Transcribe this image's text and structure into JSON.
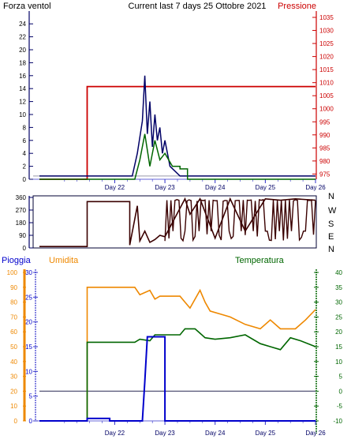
{
  "header": {
    "left": "Forza ventol",
    "center": "Current last 7 days 25 Ottobre 2021",
    "right": "Pressione"
  },
  "x_ticks": [
    "Day 22",
    "Day 23",
    "Day 24",
    "Day 25",
    "Day 26"
  ],
  "colors": {
    "wind": "#000066",
    "wind_green": "#006600",
    "pressure": "#cc0000",
    "direction": "#3a0000",
    "rain": "#0000cc",
    "humidity": "#ee8800",
    "temperature": "#006600",
    "axis_blue": "#3333cc",
    "grid": "#9999aa"
  },
  "chart_data": [
    {
      "type": "line",
      "title": "Current last 7 days 25 Ottobre 2021",
      "xlabel": "",
      "ylabel_left": "Forza ventol",
      "ylabel_right": "Pressione",
      "x": [
        20.5,
        21.5,
        22.4,
        22.6,
        22.7,
        22.8,
        22.9,
        23.0,
        23.3,
        23.45,
        24.0,
        25.0,
        26.0
      ],
      "ylim_left": [
        0,
        25
      ],
      "yticks_left": [
        0,
        2,
        4,
        6,
        8,
        10,
        12,
        14,
        16,
        18,
        20,
        22,
        24
      ],
      "ylim_right": [
        973,
        1035
      ],
      "yticks_right": [
        975,
        980,
        985,
        990,
        995,
        1000,
        1005,
        1010,
        1015,
        1020,
        1025,
        1030,
        1035
      ],
      "series": [
        {
          "name": "Pressione",
          "axis": "right",
          "x": [
            20.5,
            21.45,
            21.45,
            26.0
          ],
          "values": [
            973,
            973,
            1008.5,
            1008.5
          ]
        },
        {
          "axis": "left",
          "x": [
            20.5,
            22.35,
            22.45,
            22.55,
            22.6,
            22.65,
            22.7,
            22.75,
            22.8,
            22.85,
            22.9,
            22.95,
            23.0,
            23.1,
            23.3,
            26.0
          ],
          "values": [
            0.5,
            0.5,
            4,
            9,
            16,
            7,
            12,
            5,
            10,
            6,
            8,
            4,
            6,
            2,
            0.5,
            0.5
          ]
        },
        {
          "axis": "left",
          "x": [
            20.5,
            22.4,
            22.5,
            22.6,
            22.7,
            22.8,
            22.9,
            23.0,
            23.15,
            23.3,
            23.3,
            23.45,
            23.45,
            26.0
          ],
          "values": [
            0,
            0,
            3,
            7,
            2,
            6,
            3,
            4,
            2,
            2,
            1.6,
            1.6,
            0,
            0
          ]
        }
      ]
    },
    {
      "type": "line",
      "ylabel_right_ticks": [
        "N",
        "W",
        "S",
        "E",
        "N"
      ],
      "ylim": [
        0,
        360
      ],
      "yticks": [
        0,
        45,
        90,
        135,
        180,
        225,
        270,
        315,
        360
      ],
      "series": [
        {
          "x": [
            20.5,
            21.45,
            21.45,
            22.3,
            22.3,
            22.45,
            22.5,
            22.6,
            22.7,
            22.8,
            22.9,
            23.0,
            23.4,
            23.5,
            23.7,
            24.0,
            24.3,
            24.6,
            25.0,
            25.3,
            25.6,
            26.0
          ],
          "values": [
            10,
            10,
            330,
            330,
            20,
            300,
            50,
            120,
            40,
            60,
            90,
            80,
            350,
            240,
            350,
            70,
            350,
            120,
            350,
            340,
            350,
            340
          ]
        }
      ]
    },
    {
      "type": "line",
      "ylabel_left_1": "Pioggia",
      "ylabel_left_2": "Umidita",
      "ylabel_right": "Temperatura",
      "ylim_humidity": [
        0,
        100
      ],
      "yticks_humidity": [
        0,
        10,
        20,
        30,
        40,
        50,
        60,
        70,
        80,
        90,
        100
      ],
      "ylim_rain": [
        0,
        30
      ],
      "yticks_rain": [
        0,
        5,
        10,
        15,
        20,
        25,
        30
      ],
      "ylim_temp": [
        -10,
        40
      ],
      "yticks_temp": [
        -10,
        -5,
        0,
        5,
        10,
        15,
        20,
        25,
        30,
        35,
        40
      ],
      "series": [
        {
          "name": "Umidita",
          "axis": "humidity",
          "x": [
            20.5,
            21.45,
            21.45,
            22.4,
            22.5,
            22.7,
            22.8,
            22.9,
            23.3,
            23.4,
            23.5,
            23.7,
            23.8,
            23.9,
            24.1,
            24.3,
            24.6,
            24.9,
            25.1,
            25.3,
            25.6,
            25.8,
            26.0
          ],
          "values": [
            0,
            0,
            90,
            90,
            85,
            88,
            82,
            84,
            84,
            80,
            76,
            88,
            80,
            74,
            72,
            70,
            65,
            62,
            68,
            62,
            62,
            68,
            75
          ]
        },
        {
          "name": "Temperatura",
          "axis": "temp",
          "x": [
            20.5,
            21.45,
            21.45,
            22.4,
            22.5,
            22.7,
            22.8,
            23.3,
            23.4,
            23.6,
            23.8,
            24.0,
            24.3,
            24.6,
            24.9,
            25.1,
            25.3,
            25.5,
            25.7,
            26.0
          ],
          "values": [
            -10,
            -10,
            16.5,
            16.5,
            17.5,
            17,
            19,
            19,
            21,
            21,
            18,
            17.5,
            18,
            19,
            16,
            15,
            14,
            18,
            17,
            15
          ]
        },
        {
          "name": "Pioggia",
          "axis": "rain",
          "x": [
            20.5,
            21.45,
            21.45,
            21.9,
            21.9,
            22.55,
            22.6,
            22.65,
            22.95,
            23.0,
            23.0,
            26.0
          ],
          "values": [
            0,
            0,
            0.5,
            0.5,
            0,
            0,
            8,
            17,
            17,
            17,
            0,
            0
          ]
        },
        {
          "axis": "temp",
          "x": [
            20.5,
            26.0
          ],
          "values": [
            0,
            0
          ]
        }
      ]
    }
  ]
}
